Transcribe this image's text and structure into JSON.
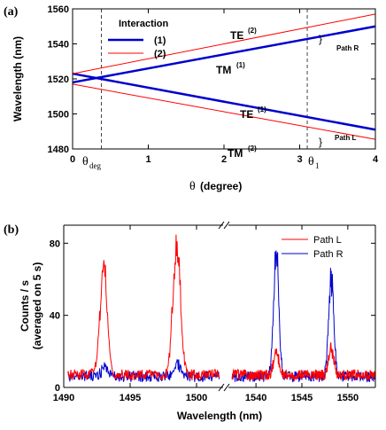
{
  "chart_data": [
    {
      "panel_label": "(a)",
      "type": "line",
      "ylabel": "Wavelength (nm)",
      "xlabel_symbol": "θ",
      "xlabel_rest": "(degree)",
      "xlim": [
        0,
        4
      ],
      "ylim": [
        1480,
        1560
      ],
      "x_ticks": [
        "0",
        "1",
        "2",
        "3",
        "4"
      ],
      "y_ticks": [
        "1480",
        "1500",
        "1520",
        "1540",
        "1560"
      ],
      "legend_title": "Interaction",
      "legend": [
        {
          "label": "(1)",
          "color": "#0000cc"
        },
        {
          "label": "(2)",
          "color": "#ff0000"
        }
      ],
      "series": [
        {
          "legend": "(1)",
          "color": "#0000cc",
          "x": [
            0,
            4
          ],
          "y": [
            1518.0,
            1550.0
          ]
        },
        {
          "legend": "(1)",
          "color": "#0000cc",
          "x": [
            0,
            4
          ],
          "y": [
            1523.0,
            1491.0
          ]
        },
        {
          "legend": "(2)",
          "color": "#ff0000",
          "x": [
            0,
            4
          ],
          "y": [
            1523.0,
            1557.0
          ]
        },
        {
          "legend": "(2)",
          "color": "#ff0000",
          "x": [
            0,
            4
          ],
          "y": [
            1517.0,
            1485.5
          ]
        }
      ],
      "vlines": [
        0.38,
        3.1
      ],
      "labels": {
        "te2": {
          "main": "TE",
          "sup": "(2)"
        },
        "tm1": {
          "main": "TM",
          "sup": "(1)"
        },
        "te1": {
          "main": "TE",
          "sup": "(1)"
        },
        "tm2": {
          "main": "TM",
          "sup": "(2)"
        },
        "path_r": "Path R",
        "path_l": "Path L",
        "theta_deg": {
          "sym": "θ",
          "sub": "deg"
        },
        "theta_1": {
          "sym": "θ",
          "sub": "1"
        }
      }
    },
    {
      "panel_label": "(b)",
      "type": "line",
      "ylabel_line1": "Counts / s",
      "ylabel_line2": "(averaged on 5 s)",
      "xlabel": "Wavelength (nm)",
      "segments": [
        [
          1490,
          1502
        ],
        [
          1537,
          1553
        ]
      ],
      "ylim": [
        0,
        90
      ],
      "x_ticks": [
        "1490",
        "1495",
        "1500",
        "1540",
        "1545",
        "1550"
      ],
      "y_ticks": [
        "0",
        "40",
        "80"
      ],
      "legend": [
        {
          "label": "Path L",
          "color": "#ff0000"
        },
        {
          "label": "Path R",
          "color": "#0000cc"
        }
      ],
      "series": [
        {
          "name": "Path L",
          "color": "#ff0000",
          "baseline": 7,
          "peaks": [
            [
              1493.0,
              68
            ],
            [
              1498.5,
              83
            ],
            [
              1542.2,
              20
            ],
            [
              1548.2,
              22
            ]
          ]
        },
        {
          "name": "Path R",
          "color": "#0000cc",
          "baseline": 6,
          "peaks": [
            [
              1493.1,
              11
            ],
            [
              1498.6,
              13
            ],
            [
              1542.2,
              80
            ],
            [
              1548.2,
              63
            ]
          ]
        }
      ]
    }
  ]
}
